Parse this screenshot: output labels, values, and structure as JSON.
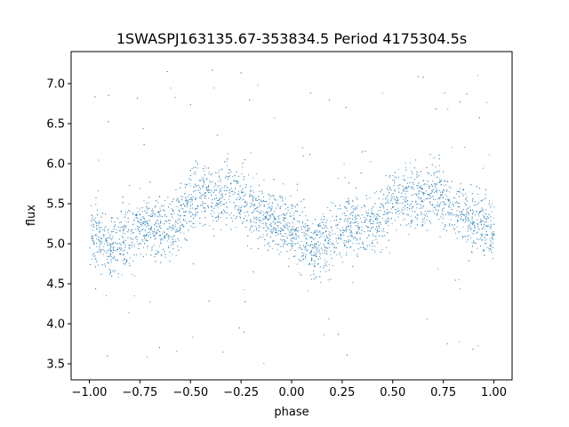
{
  "chart_data": {
    "type": "scatter",
    "title": "1SWASPJ163135.67-353834.5 Period 4175304.5s",
    "xlabel": "phase",
    "ylabel": "flux",
    "xlim": [
      -1.09,
      1.09
    ],
    "ylim": [
      3.3,
      7.4
    ],
    "xticks": [
      -1.0,
      -0.75,
      -0.5,
      -0.25,
      0.0,
      0.25,
      0.5,
      0.75,
      1.0
    ],
    "xtick_labels": [
      "−1.00",
      "−0.75",
      "−0.50",
      "−0.25",
      "0.00",
      "0.25",
      "0.50",
      "0.75",
      "1.00"
    ],
    "yticks": [
      3.5,
      4.0,
      4.5,
      5.0,
      5.5,
      6.0,
      6.5,
      7.0
    ],
    "ytick_labels": [
      "3.5",
      "4.0",
      "4.5",
      "5.0",
      "5.5",
      "6.0",
      "6.5",
      "7.0"
    ],
    "grid": false,
    "point_color": "#1f77b4",
    "series": [
      {
        "mean_curve": {
          "x": [
            0.0,
            0.05,
            0.1,
            0.15,
            0.2,
            0.25,
            0.3,
            0.35,
            0.4,
            0.45,
            0.5,
            0.55,
            0.6,
            0.65,
            0.7,
            0.75,
            0.8,
            0.85,
            0.9,
            0.95,
            1.0
          ],
          "y": [
            5.15,
            5.05,
            4.95,
            5.0,
            5.1,
            5.2,
            5.25,
            5.2,
            5.2,
            5.35,
            5.55,
            5.65,
            5.6,
            5.55,
            5.7,
            5.55,
            5.45,
            5.4,
            5.3,
            5.25,
            5.15
          ]
        }
      }
    ],
    "note_points": "dense scatter of several thousand points; curve repeats over phase -1 to 0 and 0 to 1"
  }
}
